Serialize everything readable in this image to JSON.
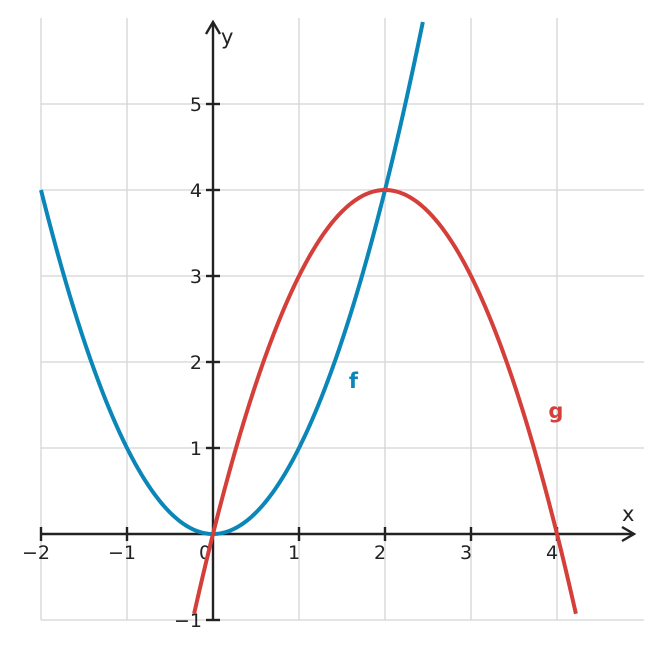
{
  "chart_data": {
    "type": "line",
    "title": "",
    "xlabel": "x",
    "ylabel": "y",
    "xlim": [
      -2,
      5
    ],
    "ylim": [
      -1,
      6
    ],
    "grid": true,
    "x_ticks": [
      -2,
      -1,
      0,
      1,
      2,
      3,
      4
    ],
    "x_tick_labels": [
      "−2",
      "−1",
      "0",
      "1",
      "2",
      "3",
      "4"
    ],
    "y_ticks": [
      -1,
      1,
      2,
      3,
      4,
      5
    ],
    "y_tick_labels": [
      "−1",
      "1",
      "2",
      "3",
      "4",
      "5"
    ],
    "series": [
      {
        "name": "f",
        "formula": "x^2",
        "color": "#0a86b8",
        "label_at": [
          1.58,
          1.7
        ],
        "x": [
          -2,
          -1.5,
          -1,
          -0.5,
          0,
          0.5,
          1,
          1.5,
          2,
          2.44
        ],
        "y": [
          4,
          2.25,
          1,
          0.25,
          0,
          0.25,
          1,
          2.25,
          4,
          5.95
        ]
      },
      {
        "name": "g",
        "formula": "4x - x^2",
        "color": "#d43f3a",
        "label_at": [
          3.9,
          1.35
        ],
        "x": [
          -0.22,
          0,
          0.5,
          1,
          1.5,
          2,
          2.5,
          3,
          3.5,
          4,
          4.22
        ],
        "y": [
          -0.93,
          0,
          1.75,
          3,
          3.75,
          4,
          3.75,
          3,
          1.75,
          0,
          -0.93
        ]
      }
    ]
  }
}
